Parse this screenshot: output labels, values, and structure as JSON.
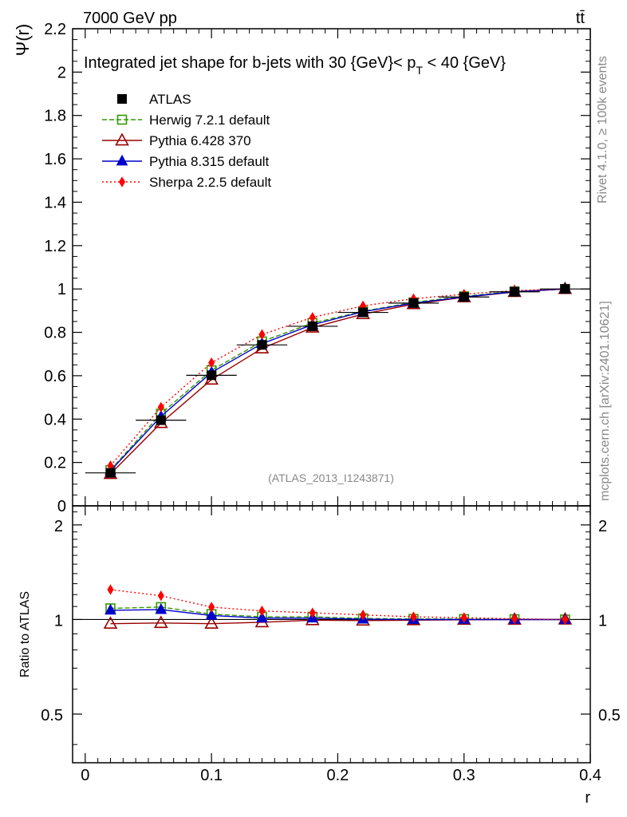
{
  "header": {
    "left_label": "7000 GeV pp",
    "right_label": "tt̄",
    "analysis_id": "(ATLAS_2013_I1243871)",
    "side_label_top": "Rivet 4.1.0, ≥ 100k events",
    "side_label_bottom": "mcplots.cern.ch [arXiv:2401.10621]"
  },
  "chart_data": [
    {
      "type": "line",
      "panel": "main",
      "title_main": "Integrated jet shape for b-jets with 30 {GeV}< p",
      "title_sub": "T",
      "title_tail": " < 40 {GeV}",
      "ylabel": "Ψ(r)",
      "xlim": [
        -0.01,
        0.4
      ],
      "ylim": [
        0,
        2.2
      ],
      "yticks": [
        0,
        0.2,
        0.4,
        0.6,
        0.8,
        1,
        1.2,
        1.4,
        1.6,
        1.8,
        2,
        2.2
      ],
      "ytick_labels": [
        "0",
        "0.2",
        "0.4",
        "0.6",
        "0.8",
        "1",
        "1.2",
        "1.4",
        "1.6",
        "1.8",
        "2",
        "2.2"
      ],
      "x": [
        0.02,
        0.06,
        0.1,
        0.14,
        0.18,
        0.22,
        0.26,
        0.3,
        0.34,
        0.38
      ],
      "series": [
        {
          "name": "ATLAS",
          "color": "#000000",
          "marker": "square-filled",
          "dash": "none",
          "values": [
            0.152,
            0.395,
            0.602,
            0.742,
            0.828,
            0.892,
            0.935,
            0.963,
            0.987,
            1.0
          ]
        },
        {
          "name": "Herwig 7.2.1 default",
          "color": "#339900",
          "marker": "square-open",
          "dash": "6,3",
          "values": [
            0.165,
            0.425,
            0.625,
            0.758,
            0.843,
            0.897,
            0.938,
            0.966,
            0.989,
            1.0
          ]
        },
        {
          "name": "Pythia 6.428 370",
          "color": "#990000",
          "marker": "triangle-open",
          "dash": "none",
          "values": [
            0.147,
            0.382,
            0.582,
            0.726,
            0.822,
            0.884,
            0.93,
            0.962,
            0.986,
            1.0
          ]
        },
        {
          "name": "Pythia 8.315 default",
          "color": "#0000cc",
          "marker": "triangle-filled",
          "dash": "none",
          "values": [
            0.162,
            0.412,
            0.615,
            0.748,
            0.835,
            0.895,
            0.935,
            0.963,
            0.987,
            1.0
          ]
        },
        {
          "name": "Sherpa 2.2.5 default",
          "color": "#ff0000",
          "marker": "diamond-filled",
          "dash": "2,3",
          "values": [
            0.185,
            0.455,
            0.66,
            0.79,
            0.869,
            0.922,
            0.955,
            0.976,
            0.993,
            1.0
          ]
        }
      ]
    },
    {
      "type": "line",
      "panel": "ratio",
      "ylabel": "Ratio to ATLAS",
      "xlabel": "r",
      "xlim": [
        -0.01,
        0.4
      ],
      "ylim": [
        0.35,
        2.3
      ],
      "yticks": [
        0.5,
        1,
        2
      ],
      "ytick_labels": [
        "0.5",
        "1",
        "2"
      ],
      "xticks": [
        0,
        0.1,
        0.2,
        0.3,
        0.4
      ],
      "xtick_labels": [
        "0",
        "0.1",
        "0.2",
        "0.3",
        "0.4"
      ],
      "x": [
        0.02,
        0.06,
        0.1,
        0.14,
        0.18,
        0.22,
        0.26,
        0.3,
        0.34,
        0.38
      ],
      "series": [
        {
          "name": "Herwig 7.2.1 default",
          "color": "#339900",
          "marker": "square-open",
          "dash": "6,3",
          "values": [
            1.085,
            1.095,
            1.04,
            1.02,
            1.02,
            1.008,
            1.004,
            1.003,
            1.002,
            1.0
          ]
        },
        {
          "name": "Pythia 6.428 370",
          "color": "#990000",
          "marker": "triangle-open",
          "dash": "none",
          "values": [
            0.97,
            0.975,
            0.97,
            0.98,
            0.995,
            0.992,
            0.995,
            0.998,
            0.999,
            1.0
          ]
        },
        {
          "name": "Pythia 8.315 default",
          "color": "#0000cc",
          "marker": "triangle-filled",
          "dash": "none",
          "values": [
            1.07,
            1.075,
            1.03,
            1.01,
            1.01,
            1.002,
            1.0,
            1.0,
            1.0,
            1.0
          ]
        },
        {
          "name": "Sherpa 2.2.5 default",
          "color": "#ff0000",
          "marker": "diamond-filled",
          "dash": "2,3",
          "values": [
            1.245,
            1.19,
            1.095,
            1.065,
            1.05,
            1.034,
            1.02,
            1.013,
            1.005,
            1.0
          ]
        }
      ]
    }
  ]
}
